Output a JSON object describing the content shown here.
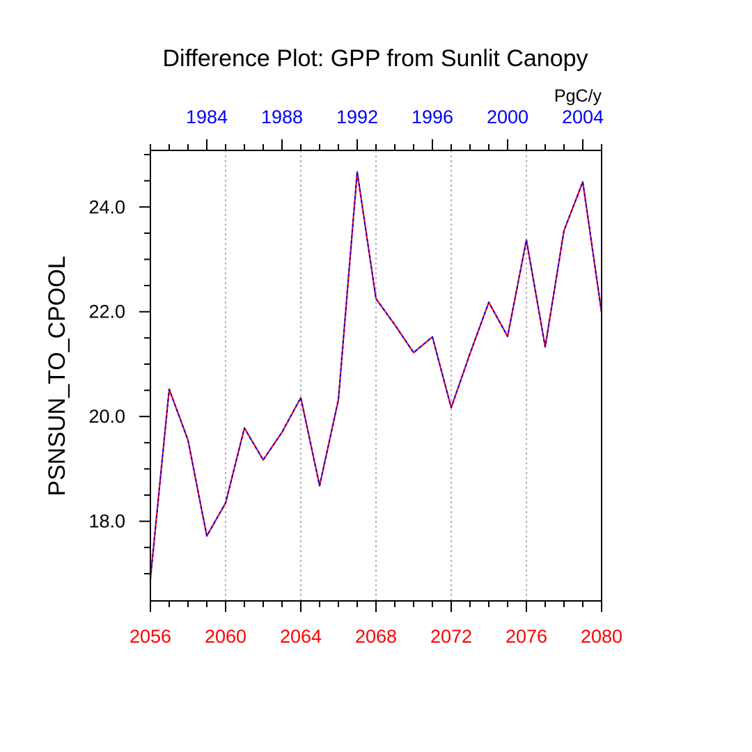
{
  "chart_data": {
    "type": "line",
    "title": "Difference Plot: GPP from Sunlit Canopy",
    "units": "PgC/y",
    "ylabel": "PSNSUN_TO_CPOOL",
    "xlabel": "",
    "xlim": [
      2056,
      2080
    ],
    "ylim": [
      16.48,
      25.08
    ],
    "bottom_axis": {
      "color": "#ff0000",
      "ticks": [
        2056,
        2060,
        2064,
        2068,
        2072,
        2076,
        2080
      ],
      "labels": [
        "2056",
        "2060",
        "2064",
        "2068",
        "2072",
        "2076",
        "2080"
      ]
    },
    "top_axis": {
      "color": "#0000ff",
      "ticks": [
        2059,
        2063,
        2067,
        2071,
        2075,
        2079
      ],
      "labels": [
        "1984",
        "1988",
        "1992",
        "1996",
        "2000",
        "2004"
      ]
    },
    "y_ticks": [
      18.0,
      20.0,
      22.0,
      24.0
    ],
    "y_tick_labels": [
      "18.0",
      "20.0",
      "22.0",
      "24.0"
    ],
    "grid": "vertical dashed at bottom-axis major ticks",
    "x": [
      2056,
      2057,
      2058,
      2059,
      2060,
      2061,
      2062,
      2063,
      2064,
      2065,
      2066,
      2067,
      2068,
      2069,
      2070,
      2071,
      2072,
      2073,
      2074,
      2075,
      2076,
      2077,
      2078,
      2079,
      2080
    ],
    "series": [
      {
        "name": "series-red",
        "color": "#ff0000",
        "values": [
          16.9,
          20.52,
          19.55,
          17.72,
          18.35,
          19.78,
          19.17,
          19.7,
          20.36,
          18.68,
          20.32,
          24.67,
          22.25,
          21.75,
          21.22,
          21.52,
          20.17,
          21.2,
          22.18,
          21.53,
          23.37,
          21.33,
          23.55,
          24.48,
          21.98
        ]
      },
      {
        "name": "series-blue",
        "color": "#0000ff",
        "values": [
          16.9,
          20.52,
          19.55,
          17.72,
          18.35,
          19.78,
          19.17,
          19.7,
          20.36,
          18.68,
          20.32,
          24.67,
          22.25,
          21.75,
          21.22,
          21.52,
          20.17,
          21.2,
          22.18,
          21.53,
          23.37,
          21.33,
          23.55,
          24.48,
          21.98
        ]
      }
    ]
  }
}
